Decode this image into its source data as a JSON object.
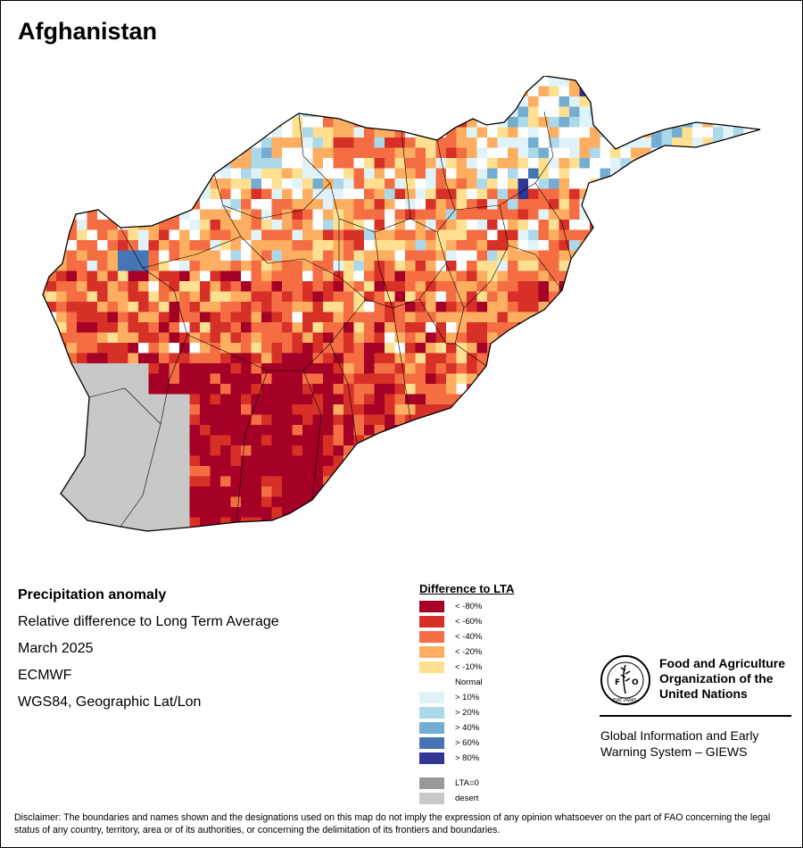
{
  "title": "Afghanistan",
  "info": {
    "heading": "Precipitation anomaly",
    "line1": "Relative difference to Long Term Average",
    "line2": "March 2025",
    "line3": "ECMWF",
    "line4": "WGS84, Geographic Lat/Lon"
  },
  "legend": {
    "title": "Difference to LTA",
    "items": [
      {
        "label": "< -80%",
        "color": "#a50026"
      },
      {
        "label": "< -60%",
        "color": "#d73027"
      },
      {
        "label": "< -40%",
        "color": "#f46d43"
      },
      {
        "label": "< -20%",
        "color": "#fdae61"
      },
      {
        "label": "< -10%",
        "color": "#fee090"
      },
      {
        "label": "Normal",
        "color": "#ffffff"
      },
      {
        "label": "> 10%",
        "color": "#e0f3f8"
      },
      {
        "label": "> 20%",
        "color": "#abd9e9"
      },
      {
        "label": "> 40%",
        "color": "#74add1"
      },
      {
        "label": "> 60%",
        "color": "#4575b4"
      },
      {
        "label": "> 80%",
        "color": "#313695"
      }
    ],
    "extra": [
      {
        "label": "LTA=0",
        "color": "#999999"
      },
      {
        "label": "desert",
        "color": "#c8c8c8"
      }
    ]
  },
  "org": {
    "logo_text": "FAO",
    "logo_motto": "FIAT PANIS",
    "name_line1": "Food and Agriculture",
    "name_line2": "Organization of the",
    "name_line3": "United Nations",
    "system_line1": "Global Information and Early",
    "system_line2": "Warning System – GIEWS"
  },
  "disclaimer": "Disclaimer: The boundaries and names shown and the designations used on this map do not imply the expression of any opinion whatsoever on the part of FAO concerning the legal status of any country, territory, area or of its authorities, or concerning the delimitation of its frontiers and boundaries.",
  "map": {
    "class_colors": [
      "#a50026",
      "#d73027",
      "#f46d43",
      "#fdae61",
      "#fee090",
      "#ffffff",
      "#e0f3f8",
      "#abd9e9",
      "#74add1",
      "#4575b4",
      "#313695"
    ],
    "desert_color": "#c8c8c8",
    "border_color": "#000000"
  }
}
